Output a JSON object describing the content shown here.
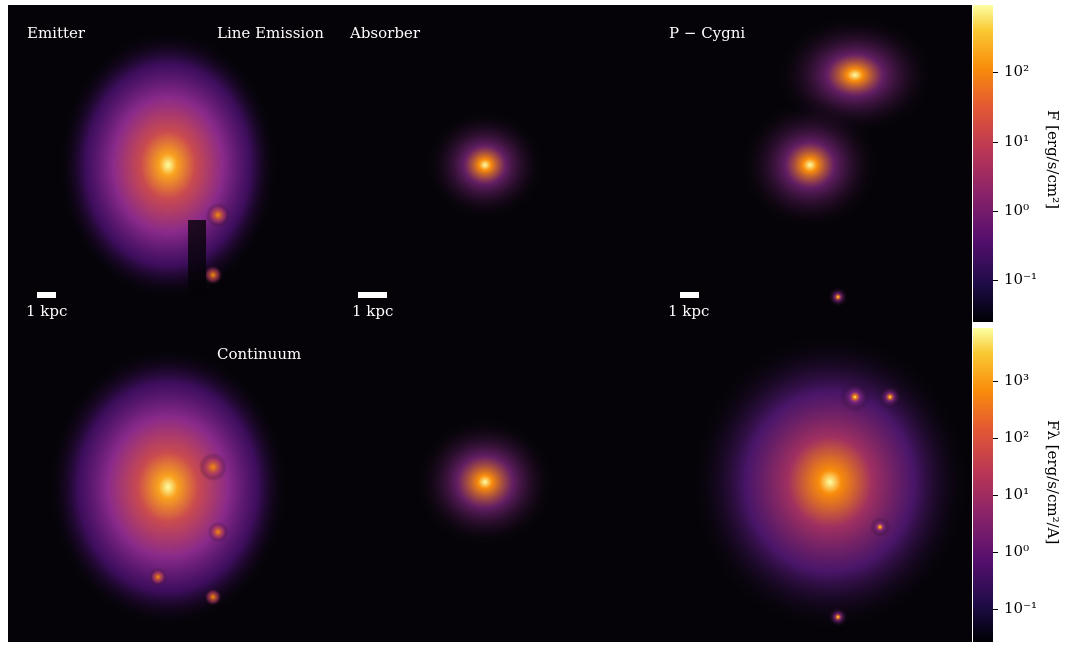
{
  "panels": {
    "emitter_label": "Emitter",
    "line_emission_label": "Line Emission",
    "absorber_label": "Absorber",
    "pcygni_label": "P − Cygni",
    "continuum_label": "Continuum",
    "scalebar_label": "1 kpc"
  },
  "colorbars": {
    "top": {
      "label": "F [erg/s/cm²]",
      "ticks": [
        "10²",
        "10¹",
        "10⁰",
        "10⁻¹"
      ]
    },
    "bottom": {
      "label": "Fλ [erg/s/cm²/A]",
      "ticks": [
        "10³",
        "10²",
        "10¹",
        "10⁰",
        "10⁻¹"
      ]
    }
  },
  "colors": {
    "background": "#050308",
    "colormap": "inferno"
  }
}
